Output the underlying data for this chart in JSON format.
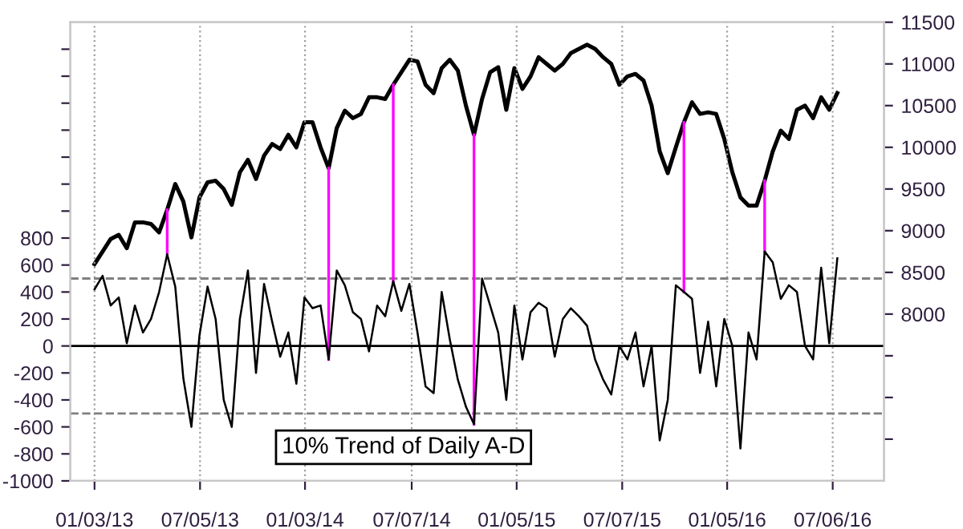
{
  "chart_data": {
    "type": "line",
    "x": [
      "2013-01-03",
      "2013-01-17",
      "2013-01-31",
      "2013-02-14",
      "2013-02-28",
      "2013-03-14",
      "2013-03-28",
      "2013-04-11",
      "2013-04-25",
      "2013-05-09",
      "2013-05-23",
      "2013-06-06",
      "2013-06-20",
      "2013-07-04",
      "2013-07-18",
      "2013-08-01",
      "2013-08-15",
      "2013-08-29",
      "2013-09-12",
      "2013-09-26",
      "2013-10-10",
      "2013-10-24",
      "2013-11-07",
      "2013-11-21",
      "2013-12-05",
      "2013-12-19",
      "2014-01-02",
      "2014-01-16",
      "2014-01-30",
      "2014-02-13",
      "2014-02-27",
      "2014-03-13",
      "2014-03-27",
      "2014-04-10",
      "2014-04-24",
      "2014-05-08",
      "2014-05-22",
      "2014-06-05",
      "2014-06-19",
      "2014-07-03",
      "2014-07-17",
      "2014-07-31",
      "2014-08-14",
      "2014-08-28",
      "2014-09-11",
      "2014-09-25",
      "2014-10-09",
      "2014-10-23",
      "2014-11-06",
      "2014-11-20",
      "2014-12-04",
      "2014-12-18",
      "2015-01-01",
      "2015-01-15",
      "2015-01-29",
      "2015-02-12",
      "2015-02-26",
      "2015-03-12",
      "2015-03-26",
      "2015-04-09",
      "2015-04-23",
      "2015-05-07",
      "2015-05-21",
      "2015-06-04",
      "2015-06-18",
      "2015-07-02",
      "2015-07-16",
      "2015-07-30",
      "2015-08-13",
      "2015-08-27",
      "2015-09-10",
      "2015-09-24",
      "2015-10-08",
      "2015-10-22",
      "2015-11-05",
      "2015-11-19",
      "2015-12-03",
      "2015-12-17",
      "2015-12-31",
      "2016-01-14",
      "2016-01-28",
      "2016-02-11",
      "2016-02-25",
      "2016-03-10",
      "2016-03-24",
      "2016-04-07",
      "2016-04-21",
      "2016-05-05",
      "2016-05-19",
      "2016-06-02",
      "2016-06-16",
      "2016-06-30",
      "2016-07-14"
    ],
    "series": [
      {
        "name": "10% Trend of Daily A-D",
        "color": "#000000",
        "values": [
          420,
          520,
          300,
          360,
          20,
          300,
          100,
          200,
          400,
          680,
          440,
          -240,
          -600,
          80,
          440,
          200,
          -400,
          -600,
          200,
          560,
          -200,
          460,
          180,
          -80,
          100,
          -280,
          360,
          280,
          300,
          -100,
          560,
          450,
          250,
          200,
          -40,
          300,
          220,
          480,
          260,
          460,
          100,
          -300,
          -350,
          400,
          50,
          -250,
          -450,
          -580,
          500,
          300,
          100,
          -400,
          300,
          -100,
          250,
          320,
          280,
          -80,
          200,
          280,
          220,
          150,
          -100,
          -250,
          -360,
          0,
          -100,
          100,
          -300,
          0,
          -700,
          -400,
          450,
          400,
          350,
          -200,
          180,
          -300,
          200,
          0,
          -760,
          100,
          -100,
          700,
          620,
          350,
          450,
          400,
          0,
          -100,
          580,
          20,
          650
        ]
      },
      {
        "color": "#000000",
        "axis": "y2",
        "values": [
          8600,
          8750,
          8900,
          8950,
          8790,
          9100,
          9100,
          9080,
          8980,
          9250,
          9560,
          9350,
          8920,
          9400,
          9580,
          9600,
          9500,
          9310,
          9700,
          9850,
          9620,
          9900,
          10040,
          9980,
          10150,
          10000,
          10300,
          10300,
          10000,
          9750,
          10230,
          10440,
          10350,
          10400,
          10600,
          10600,
          10580,
          10750,
          10900,
          11050,
          11030,
          10750,
          10650,
          10950,
          11050,
          10920,
          10500,
          10150,
          10580,
          10900,
          10960,
          10450,
          10950,
          10700,
          10850,
          11080,
          11000,
          10920,
          11000,
          11130,
          11180,
          11230,
          11180,
          11080,
          11000,
          10750,
          10850,
          10880,
          10800,
          10500,
          9950,
          9690,
          10000,
          10300,
          10540,
          10400,
          10420,
          10400,
          10100,
          9700,
          9400,
          9300,
          9300,
          9600,
          9950,
          10200,
          10100,
          10450,
          10500,
          10350,
          10600,
          10450,
          10650
        ]
      }
    ],
    "xlim": [
      "2012-11-22",
      "2016-10-03"
    ],
    "xticks": [
      {
        "value": "2013-01-03",
        "label": "01/03/13"
      },
      {
        "value": "2013-07-05",
        "label": "07/05/13"
      },
      {
        "value": "2014-01-03",
        "label": "01/03/14"
      },
      {
        "value": "2014-07-07",
        "label": "07/07/14"
      },
      {
        "value": "2015-01-05",
        "label": "01/05/15"
      },
      {
        "value": "2015-07-07",
        "label": "07/07/15"
      },
      {
        "value": "2016-01-05",
        "label": "01/05/16"
      },
      {
        "value": "2016-07-06",
        "label": "07/06/16"
      }
    ],
    "ylim": [
      -1000,
      2400
    ],
    "yticks": [
      -1000,
      -800,
      -600,
      -400,
      -200,
      0,
      200,
      400,
      600,
      800,
      {
        "value": 1000,
        "label": null
      },
      {
        "value": 1200,
        "label": null
      },
      {
        "value": 1400,
        "label": null
      },
      {
        "value": 1600,
        "label": null
      },
      {
        "value": 1800,
        "label": null
      },
      {
        "value": 2000,
        "label": null
      },
      {
        "value": 2200,
        "label": null
      }
    ],
    "y2lim": [
      6000,
      11500
    ],
    "y2ticks": [
      {
        "value": 6500,
        "label": null
      },
      {
        "value": 7000,
        "label": null
      },
      {
        "value": 7500,
        "label": null
      },
      8000,
      8500,
      9000,
      9500,
      10000,
      10500,
      11000,
      11500
    ],
    "ref_lines": [
      {
        "axis": "y",
        "value": 0,
        "color": "#000000",
        "line_style": "solid"
      },
      {
        "axis": "y",
        "value": 500,
        "color": "#808080",
        "line_style": "dashed"
      },
      {
        "axis": "y",
        "value": -500,
        "color": "#808080",
        "line_style": "dashed"
      },
      {
        "axis": "x",
        "value": "2013-05-09",
        "color": "#ff00ff"
      },
      {
        "axis": "x",
        "value": "2014-02-13",
        "color": "#ff00ff"
      },
      {
        "axis": "x",
        "value": "2014-06-05",
        "color": "#ff00ff"
      },
      {
        "axis": "x",
        "value": "2014-10-23",
        "color": "#ff00ff"
      },
      {
        "axis": "x",
        "value": "2015-10-22",
        "color": "#ff00ff"
      },
      {
        "axis": "x",
        "value": "2016-03-10",
        "color": "#ff00ff"
      }
    ],
    "grid": "x",
    "line_style": "solid",
    "marker": "none"
  }
}
